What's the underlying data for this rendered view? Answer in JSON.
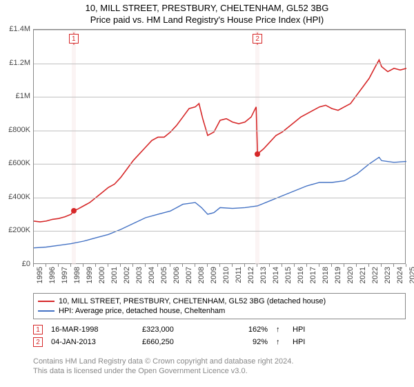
{
  "title_line1": "10, MILL STREET, PRESTBURY, CHELTENHAM, GL52 3BG",
  "title_line2": "Price paid vs. HM Land Registry's House Price Index (HPI)",
  "chart": {
    "type": "line",
    "ylim": [
      0,
      1400000
    ],
    "ytick_step": 200000,
    "y_labels": [
      "£0",
      "£200K",
      "£400K",
      "£600K",
      "£800K",
      "£1M",
      "£1.2M",
      "£1.4M"
    ],
    "x_start_year": 1995,
    "x_end_year": 2025,
    "x_labels": [
      "1995",
      "1996",
      "1997",
      "1998",
      "1999",
      "2000",
      "2001",
      "2002",
      "2003",
      "2004",
      "2005",
      "2006",
      "2007",
      "2008",
      "2009",
      "2010",
      "2011",
      "2012",
      "2013",
      "2014",
      "2015",
      "2016",
      "2017",
      "2018",
      "2019",
      "2020",
      "2021",
      "2022",
      "2023",
      "2024",
      "2025"
    ],
    "grid_color": "#c0c0c0",
    "border_color": "#888888",
    "background_color": "#ffffff",
    "series": [
      {
        "name": "property",
        "label": "10, MILL STREET, PRESTBURY, CHELTENHAM, GL52 3BG (detached house)",
        "color": "#d62728",
        "line_width": 1.6,
        "data": [
          [
            1995.0,
            260000
          ],
          [
            1995.5,
            255000
          ],
          [
            1996.0,
            260000
          ],
          [
            1996.5,
            270000
          ],
          [
            1997.0,
            275000
          ],
          [
            1997.5,
            285000
          ],
          [
            1998.0,
            300000
          ],
          [
            1998.21,
            323000
          ],
          [
            1998.5,
            330000
          ],
          [
            1999.0,
            350000
          ],
          [
            1999.5,
            370000
          ],
          [
            2000.0,
            400000
          ],
          [
            2000.5,
            430000
          ],
          [
            2001.0,
            460000
          ],
          [
            2001.5,
            480000
          ],
          [
            2002.0,
            520000
          ],
          [
            2002.5,
            570000
          ],
          [
            2003.0,
            620000
          ],
          [
            2003.5,
            660000
          ],
          [
            2004.0,
            700000
          ],
          [
            2004.5,
            740000
          ],
          [
            2005.0,
            760000
          ],
          [
            2005.5,
            760000
          ],
          [
            2006.0,
            790000
          ],
          [
            2006.5,
            830000
          ],
          [
            2007.0,
            880000
          ],
          [
            2007.5,
            930000
          ],
          [
            2008.0,
            940000
          ],
          [
            2008.3,
            960000
          ],
          [
            2008.6,
            870000
          ],
          [
            2009.0,
            770000
          ],
          [
            2009.5,
            790000
          ],
          [
            2010.0,
            860000
          ],
          [
            2010.5,
            870000
          ],
          [
            2011.0,
            850000
          ],
          [
            2011.5,
            840000
          ],
          [
            2012.0,
            850000
          ],
          [
            2012.5,
            880000
          ],
          [
            2012.9,
            940000
          ],
          [
            2013.01,
            660250
          ],
          [
            2013.5,
            690000
          ],
          [
            2014.0,
            730000
          ],
          [
            2014.5,
            770000
          ],
          [
            2015.0,
            790000
          ],
          [
            2015.5,
            820000
          ],
          [
            2016.0,
            850000
          ],
          [
            2016.5,
            880000
          ],
          [
            2017.0,
            900000
          ],
          [
            2017.5,
            920000
          ],
          [
            2018.0,
            940000
          ],
          [
            2018.5,
            950000
          ],
          [
            2019.0,
            930000
          ],
          [
            2019.5,
            920000
          ],
          [
            2020.0,
            940000
          ],
          [
            2020.5,
            960000
          ],
          [
            2021.0,
            1010000
          ],
          [
            2021.5,
            1060000
          ],
          [
            2022.0,
            1110000
          ],
          [
            2022.5,
            1180000
          ],
          [
            2022.8,
            1220000
          ],
          [
            2023.0,
            1180000
          ],
          [
            2023.5,
            1150000
          ],
          [
            2024.0,
            1170000
          ],
          [
            2024.5,
            1160000
          ],
          [
            2025.0,
            1170000
          ]
        ]
      },
      {
        "name": "hpi",
        "label": "HPI: Average price, detached house, Cheltenham",
        "color": "#4472c4",
        "line_width": 1.4,
        "data": [
          [
            1995.0,
            100000
          ],
          [
            1996.0,
            105000
          ],
          [
            1997.0,
            115000
          ],
          [
            1998.0,
            125000
          ],
          [
            1999.0,
            140000
          ],
          [
            2000.0,
            160000
          ],
          [
            2001.0,
            180000
          ],
          [
            2002.0,
            210000
          ],
          [
            2003.0,
            245000
          ],
          [
            2004.0,
            280000
          ],
          [
            2005.0,
            300000
          ],
          [
            2006.0,
            320000
          ],
          [
            2007.0,
            360000
          ],
          [
            2008.0,
            370000
          ],
          [
            2008.5,
            340000
          ],
          [
            2009.0,
            300000
          ],
          [
            2009.5,
            310000
          ],
          [
            2010.0,
            340000
          ],
          [
            2011.0,
            335000
          ],
          [
            2012.0,
            340000
          ],
          [
            2013.0,
            350000
          ],
          [
            2014.0,
            380000
          ],
          [
            2015.0,
            410000
          ],
          [
            2016.0,
            440000
          ],
          [
            2017.0,
            470000
          ],
          [
            2018.0,
            490000
          ],
          [
            2019.0,
            490000
          ],
          [
            2020.0,
            500000
          ],
          [
            2021.0,
            540000
          ],
          [
            2022.0,
            600000
          ],
          [
            2022.8,
            640000
          ],
          [
            2023.0,
            620000
          ],
          [
            2024.0,
            610000
          ],
          [
            2025.0,
            615000
          ]
        ]
      }
    ],
    "sales": [
      {
        "flag": "1",
        "year": 1998.21,
        "value": 323000,
        "band_color": "#f7e9e9"
      },
      {
        "flag": "2",
        "year": 2013.01,
        "value": 660250,
        "band_color": "#f7e9e9"
      }
    ]
  },
  "legend": {
    "items": [
      {
        "color": "#d62728",
        "label_ref": "chart.series.0.label"
      },
      {
        "color": "#4472c4",
        "label_ref": "chart.series.1.label"
      }
    ]
  },
  "sale_table": [
    {
      "flag": "1",
      "date": "16-MAR-1998",
      "price": "£323,000",
      "pct": "162%",
      "arrow": "↑",
      "suffix": "HPI"
    },
    {
      "flag": "2",
      "date": "04-JAN-2013",
      "price": "£660,250",
      "pct": "92%",
      "arrow": "↑",
      "suffix": "HPI"
    }
  ],
  "footer_line1": "Contains HM Land Registry data © Crown copyright and database right 2024.",
  "footer_line2": "This data is licensed under the Open Government Licence v3.0."
}
